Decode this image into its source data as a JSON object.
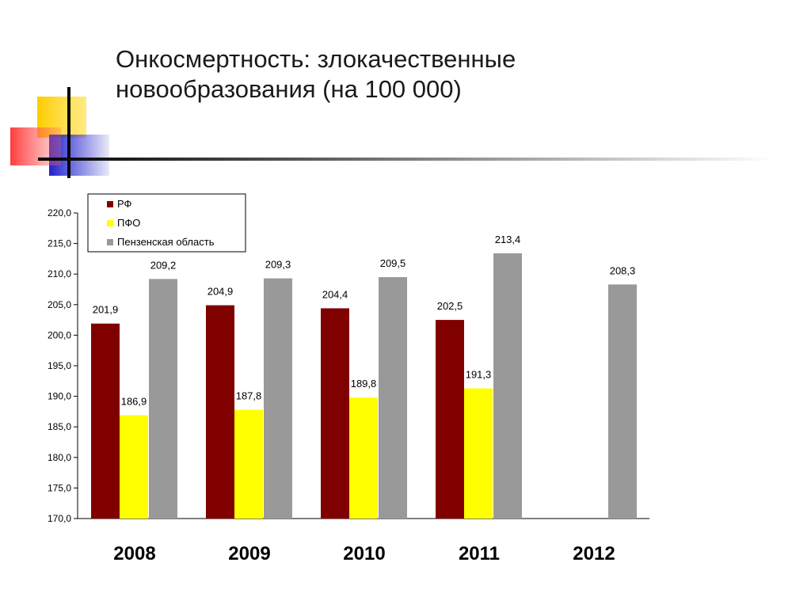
{
  "title_line1": "Онкосмертность: злокачественные",
  "title_line2": "новообразования (на 100 000)",
  "colors": {
    "rf": "#800000",
    "pfo": "#ffff00",
    "penza": "#999999",
    "deco_yellow": "#ffcc00",
    "deco_blue": "#3333cc",
    "deco_red": "#ff3333"
  },
  "chart_data": {
    "type": "bar",
    "categories": [
      "2008",
      "2009",
      "2010",
      "2011",
      "2012"
    ],
    "series": [
      {
        "name": "РФ",
        "values": [
          201.9,
          204.9,
          204.4,
          202.5,
          null
        ],
        "labels": [
          "201,9",
          "204,9",
          "204,4",
          "202,5",
          ""
        ]
      },
      {
        "name": "ПФО",
        "values": [
          186.9,
          187.8,
          189.8,
          191.3,
          null
        ],
        "labels": [
          "186,9",
          "187,8",
          "189,8",
          "191,3",
          ""
        ]
      },
      {
        "name": "Пензенская область",
        "values": [
          209.2,
          209.3,
          209.5,
          213.4,
          208.3
        ],
        "labels": [
          "209,2",
          "209,3",
          "209,5",
          "213,4",
          "208,3"
        ]
      }
    ],
    "ylim": [
      170,
      220
    ],
    "yticks": [
      170,
      175,
      180,
      185,
      190,
      195,
      200,
      205,
      210,
      215,
      220
    ],
    "ytick_labels": [
      "170,0",
      "175,0",
      "180,0",
      "185,0",
      "190,0",
      "195,0",
      "200,0",
      "205,0",
      "210,0",
      "215,0",
      "220,0"
    ],
    "legend_position": "top-left",
    "grid": false
  }
}
